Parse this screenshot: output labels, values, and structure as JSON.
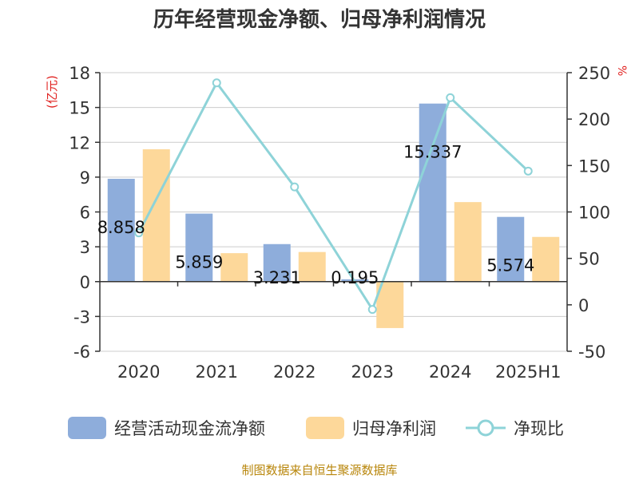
{
  "title": "历年经营现金净额、归母净利润情况",
  "left_unit": "(亿元)",
  "right_unit": "%",
  "source": "制图数据来自恒生聚源数据库",
  "colors": {
    "cash": "#8eaddb",
    "profit": "#fdd89a",
    "ratio": "#8ed3d8",
    "grid": "#cccccc",
    "axis": "#333333",
    "unit": "#e0201e",
    "source": "#b8860b"
  },
  "legend": {
    "cash": "经营活动现金流净额",
    "profit": "归母净利润",
    "ratio": "净现比"
  },
  "chart_data": {
    "type": "bar",
    "title": "历年经营现金净额、归母净利润情况",
    "categories": [
      "2020",
      "2021",
      "2022",
      "2023",
      "2024",
      "2025H1"
    ],
    "series": [
      {
        "name": "经营活动现金流净额",
        "type": "bar",
        "axis": "left",
        "values": [
          8.858,
          5.859,
          3.231,
          0.195,
          15.337,
          5.574
        ],
        "labels": [
          "8.858",
          "5.859",
          "3.231",
          "0.195",
          "15.337",
          "5.574"
        ]
      },
      {
        "name": "归母净利润",
        "type": "bar",
        "axis": "left",
        "values": [
          11.4,
          2.45,
          2.55,
          -4.0,
          6.85,
          3.85
        ]
      },
      {
        "name": "净现比",
        "type": "line",
        "axis": "right",
        "values": [
          77.5,
          239,
          127,
          -5,
          223,
          144
        ]
      }
    ],
    "y_left": {
      "label": "(亿元)",
      "min": -6,
      "max": 18,
      "ticks": [
        18,
        15,
        12,
        9,
        6,
        3,
        0,
        -3,
        -6
      ],
      "tick_labels": [
        "18",
        "15",
        "12",
        "9",
        "6",
        "3",
        "0",
        "-3",
        "-6"
      ]
    },
    "y_right": {
      "label": "%",
      "min": -50,
      "max": 250,
      "ticks": [
        250,
        200,
        150,
        100,
        50,
        0,
        -50
      ],
      "tick_labels": [
        "250",
        "200",
        "150",
        "100",
        "50",
        "0",
        "-50"
      ]
    },
    "grid": true,
    "legend_position": "bottom"
  }
}
